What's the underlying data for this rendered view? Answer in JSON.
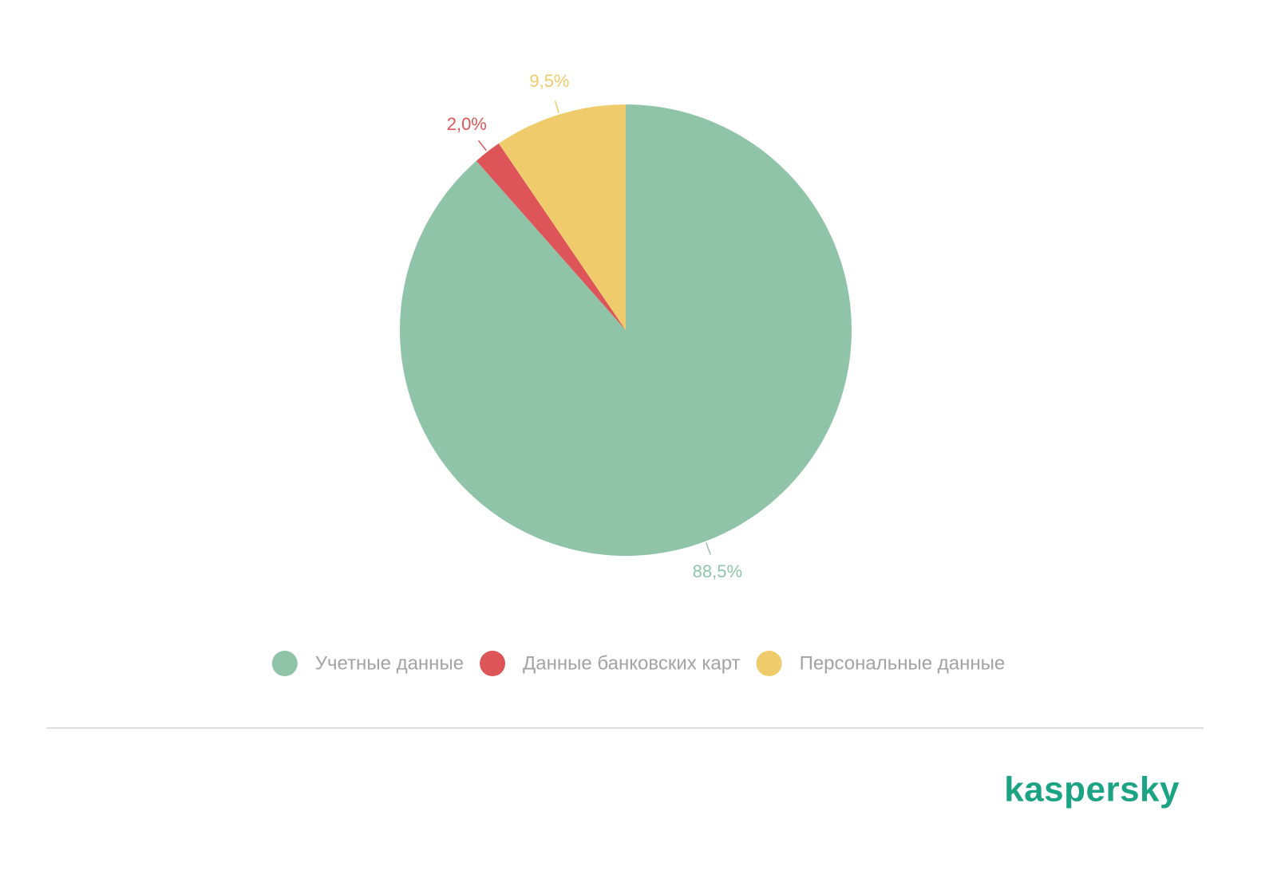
{
  "chart_data": {
    "type": "pie",
    "categories": [
      "Учетные данные",
      "Данные банковских карт",
      "Персональные данные"
    ],
    "values": [
      88.5,
      2.0,
      9.5
    ],
    "value_labels": [
      "88,5%",
      "2,0%",
      "9,5%"
    ],
    "colors": [
      "#90c4a8",
      "#dd5558",
      "#efcb6b"
    ],
    "start_angle": 0,
    "direction": "clockwise",
    "legend": "bottom"
  },
  "brand": "kaspersky"
}
